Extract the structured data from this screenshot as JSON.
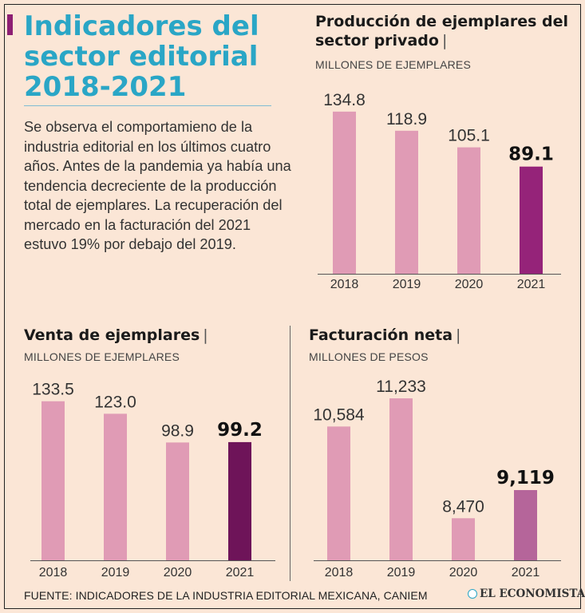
{
  "header": {
    "title_lines": [
      "Indicadores del",
      "sector editorial",
      "2018-2021"
    ],
    "intro": "Se observa el comportamieno de la industria editorial en los últimos cuatro años. Antes de la pandemia ya había una tendencia decreciente de la producción total de ejemplares. La recuperación del mercado en la facturación del 2021 estuvo 19% por debajo del 2019."
  },
  "colors": {
    "accent": "#8e1f73",
    "title": "#2aa6c6",
    "bar": "#e09bb5",
    "background": "#fbe6d6"
  },
  "chart_data": [
    {
      "type": "bar",
      "title": "Producción de ejemplares del sector privado",
      "separator": "|",
      "subtitle": "MILLONES DE EJEMPLARES",
      "categories": [
        "2018",
        "2019",
        "2020",
        "2021"
      ],
      "values": [
        134.8,
        118.9,
        105.1,
        89.1
      ],
      "value_labels": [
        "134.8",
        "118.9",
        "105.1",
        "89.1"
      ],
      "highlight_index": 3,
      "bar_colors": [
        "#e09bb5",
        "#e09bb5",
        "#e09bb5",
        "#952379"
      ],
      "ylim": [
        0,
        140
      ]
    },
    {
      "type": "bar",
      "title": "Venta de ejemplares",
      "separator": "|",
      "subtitle": "MILLONES DE EJEMPLARES",
      "categories": [
        "2018",
        "2019",
        "2020",
        "2021"
      ],
      "values": [
        133.5,
        123.0,
        98.9,
        99.2
      ],
      "value_labels": [
        "133.5",
        "123.0",
        "98.9",
        "99.2"
      ],
      "highlight_index": 3,
      "bar_colors": [
        "#e09bb5",
        "#e09bb5",
        "#e09bb5",
        "#6e1459"
      ],
      "ylim": [
        0,
        140
      ]
    },
    {
      "type": "bar",
      "title": "Facturación neta",
      "separator": "|",
      "subtitle": "MILLONES DE PESOS",
      "categories": [
        "2018",
        "2019",
        "2020",
        "2021"
      ],
      "values": [
        10584,
        11233,
        8470,
        9119
      ],
      "value_labels": [
        "10,584",
        "11,233",
        "8,470",
        "9,119"
      ],
      "highlight_index": 3,
      "bar_colors": [
        "#e09bb5",
        "#e09bb5",
        "#e09bb5",
        "#b5659a"
      ],
      "ylim": [
        7500,
        11400
      ]
    }
  ],
  "footer": {
    "source": "FUENTE: INDICADORES DE LA INDUSTRIA EDITORIAL MEXICANA, CANIEM",
    "logo": "EL ECONOMISTA"
  }
}
